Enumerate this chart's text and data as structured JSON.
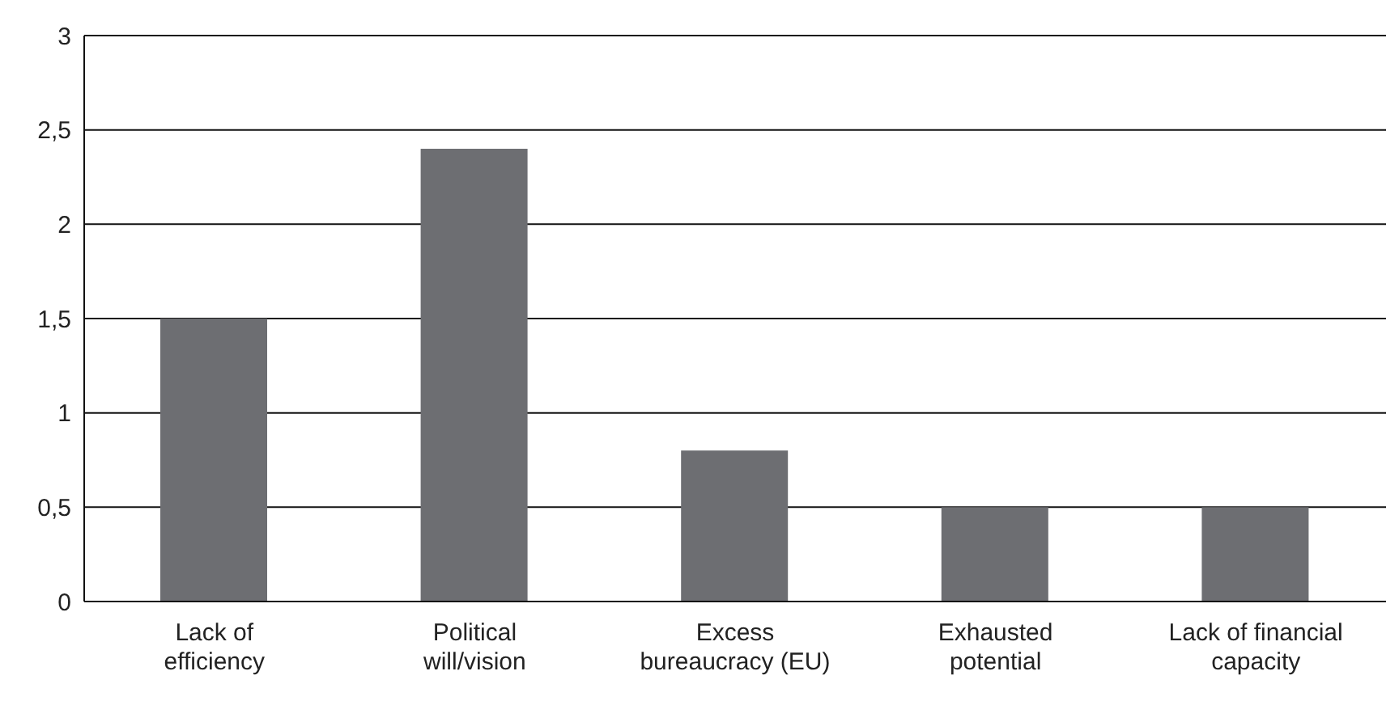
{
  "chart_data": {
    "type": "bar",
    "categories": [
      "Lack of efficiency",
      "Political will/vision",
      "Excess bureaucracy (EU)",
      "Exhausted potential",
      "Lack of financial capacity"
    ],
    "values": [
      1.5,
      2.4,
      0.8,
      0.5,
      0.5
    ],
    "color": "#6d6e72",
    "ylim": [
      0,
      3
    ],
    "yticks": [
      0,
      {
        "value": 0.5,
        "label": "0,5"
      },
      1,
      {
        "value": 1.5,
        "label": "1,5"
      },
      2,
      {
        "value": 2.5,
        "label": "2,5"
      },
      3
    ],
    "grid": "y"
  }
}
